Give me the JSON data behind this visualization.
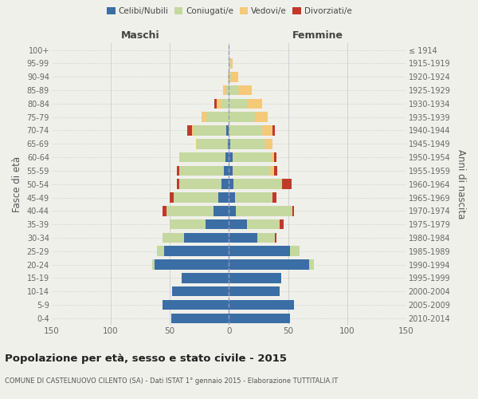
{
  "age_groups": [
    "0-4",
    "5-9",
    "10-14",
    "15-19",
    "20-24",
    "25-29",
    "30-34",
    "35-39",
    "40-44",
    "45-49",
    "50-54",
    "55-59",
    "60-64",
    "65-69",
    "70-74",
    "75-79",
    "80-84",
    "85-89",
    "90-94",
    "95-99",
    "100+"
  ],
  "birth_years": [
    "2010-2014",
    "2005-2009",
    "2000-2004",
    "1995-1999",
    "1990-1994",
    "1985-1989",
    "1980-1984",
    "1975-1979",
    "1970-1974",
    "1965-1969",
    "1960-1964",
    "1955-1959",
    "1950-1954",
    "1945-1949",
    "1940-1944",
    "1935-1939",
    "1930-1934",
    "1925-1929",
    "1920-1924",
    "1915-1919",
    "≤ 1914"
  ],
  "males": {
    "celibe": [
      49,
      56,
      48,
      40,
      63,
      55,
      38,
      20,
      13,
      9,
      6,
      4,
      3,
      1,
      2,
      0,
      0,
      0,
      0,
      0,
      0
    ],
    "coniugato": [
      0,
      0,
      0,
      0,
      2,
      5,
      18,
      30,
      40,
      38,
      36,
      38,
      39,
      26,
      28,
      19,
      6,
      2,
      0,
      0,
      0
    ],
    "vedovo": [
      0,
      0,
      0,
      0,
      0,
      1,
      0,
      0,
      0,
      0,
      0,
      0,
      0,
      1,
      1,
      4,
      4,
      3,
      1,
      0,
      0
    ],
    "divorziato": [
      0,
      0,
      0,
      0,
      0,
      0,
      0,
      0,
      3,
      3,
      2,
      2,
      0,
      0,
      4,
      0,
      2,
      0,
      0,
      0,
      0
    ]
  },
  "females": {
    "nubile": [
      52,
      55,
      43,
      44,
      68,
      52,
      24,
      15,
      6,
      5,
      4,
      3,
      3,
      1,
      0,
      0,
      0,
      0,
      0,
      0,
      0
    ],
    "coniugata": [
      0,
      0,
      0,
      0,
      4,
      8,
      15,
      28,
      48,
      32,
      40,
      32,
      33,
      30,
      28,
      22,
      16,
      8,
      2,
      1,
      0
    ],
    "vedova": [
      0,
      0,
      0,
      0,
      0,
      0,
      0,
      0,
      0,
      0,
      1,
      3,
      2,
      6,
      9,
      11,
      12,
      11,
      6,
      2,
      0
    ],
    "divorziata": [
      0,
      0,
      0,
      0,
      0,
      0,
      1,
      3,
      1,
      3,
      8,
      3,
      2,
      0,
      2,
      0,
      0,
      0,
      0,
      0,
      0
    ]
  },
  "color_celibe": "#3a6ea5",
  "color_coniugato": "#c5d8a0",
  "color_vedovo": "#f5c97a",
  "color_divorziato": "#c0392b",
  "xlim": 150,
  "title": "Popolazione per età, sesso e stato civile - 2015",
  "subtitle": "COMUNE DI CASTELNUOVO CILENTO (SA) - Dati ISTAT 1° gennaio 2015 - Elaborazione TUTTITALIA.IT",
  "ylabel": "Fasce di età",
  "ylabel_right": "Anni di nascita",
  "xlabel_maschi": "Maschi",
  "xlabel_femmine": "Femmine",
  "bg_color": "#f0f0eb",
  "bar_height": 0.75
}
